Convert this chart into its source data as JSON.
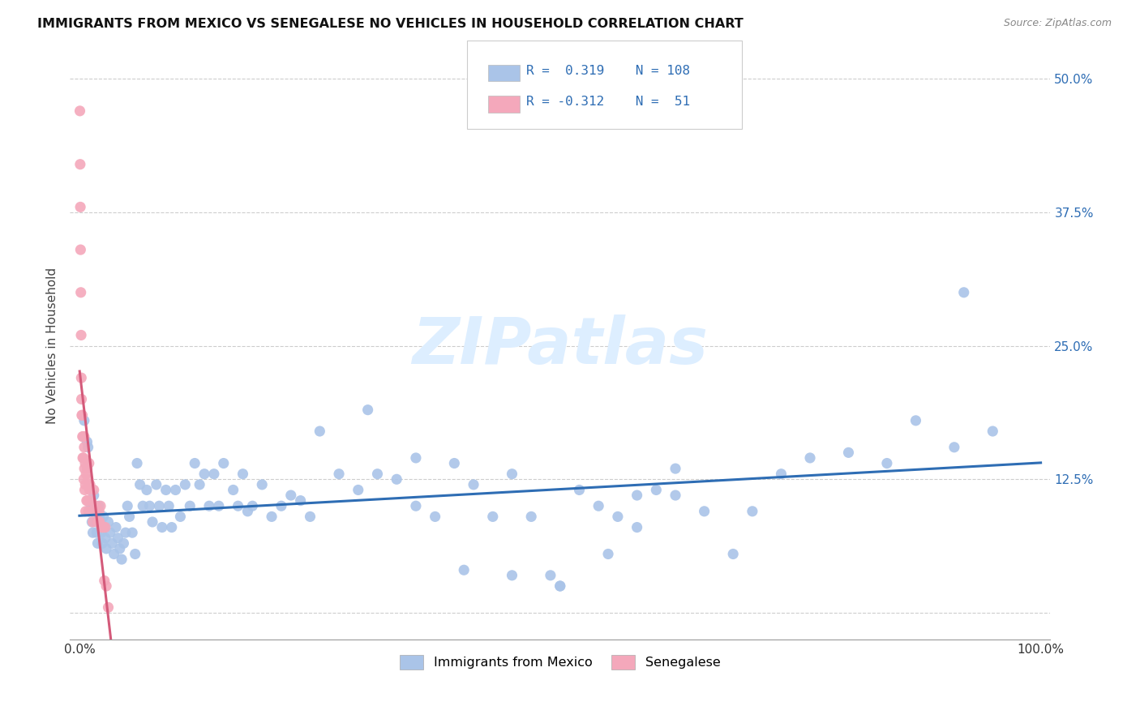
{
  "title": "IMMIGRANTS FROM MEXICO VS SENEGALESE NO VEHICLES IN HOUSEHOLD CORRELATION CHART",
  "source": "Source: ZipAtlas.com",
  "ylabel": "No Vehicles in Household",
  "blue_R": 0.319,
  "blue_N": 108,
  "pink_R": -0.312,
  "pink_N": 51,
  "blue_color": "#aac4e8",
  "pink_color": "#f4a8bb",
  "blue_line_color": "#2e6db4",
  "pink_line_color": "#d45a7a",
  "text_color": "#2e6db4",
  "watermark": "ZIPatlas",
  "watermark_color": "#ddeeff",
  "legend_edge_color": "#cccccc",
  "blue_scatter_x": [
    0.005,
    0.008,
    0.009,
    0.01,
    0.012,
    0.013,
    0.014,
    0.015,
    0.016,
    0.017,
    0.018,
    0.019,
    0.02,
    0.021,
    0.022,
    0.023,
    0.024,
    0.025,
    0.026,
    0.027,
    0.028,
    0.03,
    0.032,
    0.034,
    0.036,
    0.038,
    0.04,
    0.042,
    0.044,
    0.046,
    0.048,
    0.05,
    0.052,
    0.055,
    0.058,
    0.06,
    0.063,
    0.066,
    0.07,
    0.073,
    0.076,
    0.08,
    0.083,
    0.086,
    0.09,
    0.093,
    0.096,
    0.1,
    0.105,
    0.11,
    0.115,
    0.12,
    0.125,
    0.13,
    0.135,
    0.14,
    0.145,
    0.15,
    0.16,
    0.165,
    0.17,
    0.175,
    0.18,
    0.19,
    0.2,
    0.21,
    0.22,
    0.23,
    0.24,
    0.25,
    0.27,
    0.29,
    0.31,
    0.33,
    0.35,
    0.37,
    0.39,
    0.41,
    0.43,
    0.45,
    0.47,
    0.49,
    0.5,
    0.52,
    0.54,
    0.56,
    0.58,
    0.6,
    0.62,
    0.65,
    0.68,
    0.7,
    0.73,
    0.76,
    0.8,
    0.84,
    0.87,
    0.91,
    0.95,
    0.3,
    0.35,
    0.4,
    0.45,
    0.5,
    0.55,
    0.58,
    0.62,
    0.92
  ],
  "blue_scatter_y": [
    0.18,
    0.16,
    0.155,
    0.095,
    0.1,
    0.085,
    0.075,
    0.11,
    0.095,
    0.085,
    0.075,
    0.065,
    0.1,
    0.09,
    0.085,
    0.075,
    0.065,
    0.09,
    0.08,
    0.07,
    0.06,
    0.085,
    0.075,
    0.065,
    0.055,
    0.08,
    0.07,
    0.06,
    0.05,
    0.065,
    0.075,
    0.1,
    0.09,
    0.075,
    0.055,
    0.14,
    0.12,
    0.1,
    0.115,
    0.1,
    0.085,
    0.12,
    0.1,
    0.08,
    0.115,
    0.1,
    0.08,
    0.115,
    0.09,
    0.12,
    0.1,
    0.14,
    0.12,
    0.13,
    0.1,
    0.13,
    0.1,
    0.14,
    0.115,
    0.1,
    0.13,
    0.095,
    0.1,
    0.12,
    0.09,
    0.1,
    0.11,
    0.105,
    0.09,
    0.17,
    0.13,
    0.115,
    0.13,
    0.125,
    0.1,
    0.09,
    0.14,
    0.12,
    0.09,
    0.13,
    0.09,
    0.035,
    0.025,
    0.115,
    0.1,
    0.09,
    0.08,
    0.115,
    0.11,
    0.095,
    0.055,
    0.095,
    0.13,
    0.145,
    0.15,
    0.14,
    0.18,
    0.155,
    0.17,
    0.19,
    0.145,
    0.04,
    0.035,
    0.025,
    0.055,
    0.11,
    0.135,
    0.3
  ],
  "pink_scatter_x": [
    0.0005,
    0.0008,
    0.001,
    0.0012,
    0.0015,
    0.0018,
    0.002,
    0.0022,
    0.0025,
    0.003,
    0.0032,
    0.0035,
    0.004,
    0.0042,
    0.0045,
    0.005,
    0.0052,
    0.0055,
    0.006,
    0.0062,
    0.0065,
    0.007,
    0.0075,
    0.008,
    0.0085,
    0.009,
    0.0095,
    0.01,
    0.0105,
    0.011,
    0.0115,
    0.012,
    0.013,
    0.014,
    0.015,
    0.016,
    0.017,
    0.018,
    0.019,
    0.02,
    0.0205,
    0.021,
    0.022,
    0.023,
    0.024,
    0.025,
    0.026,
    0.027,
    0.028,
    0.03,
    0.005
  ],
  "pink_scatter_y": [
    0.47,
    0.42,
    0.38,
    0.34,
    0.3,
    0.26,
    0.22,
    0.2,
    0.185,
    0.185,
    0.165,
    0.145,
    0.165,
    0.145,
    0.125,
    0.155,
    0.135,
    0.115,
    0.14,
    0.12,
    0.095,
    0.13,
    0.105,
    0.135,
    0.105,
    0.125,
    0.095,
    0.14,
    0.115,
    0.12,
    0.095,
    0.105,
    0.095,
    0.085,
    0.115,
    0.095,
    0.1,
    0.095,
    0.085,
    0.085,
    0.095,
    0.085,
    0.1,
    0.08,
    0.08,
    0.08,
    0.03,
    0.08,
    0.025,
    0.005,
    0.165
  ]
}
